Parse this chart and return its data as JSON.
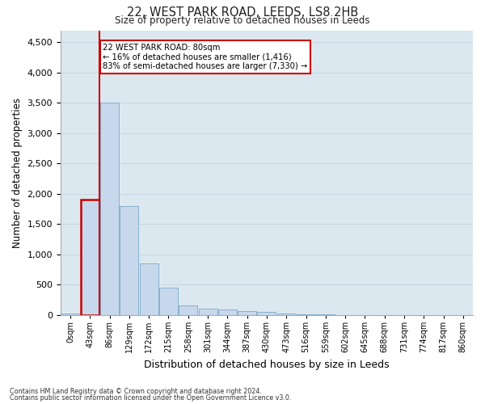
{
  "title1": "22, WEST PARK ROAD, LEEDS, LS8 2HB",
  "title2": "Size of property relative to detached houses in Leeds",
  "xlabel": "Distribution of detached houses by size in Leeds",
  "ylabel": "Number of detached properties",
  "annotation_line1": "22 WEST PARK ROAD: 80sqm",
  "annotation_line2": "← 16% of detached houses are smaller (1,416)",
  "annotation_line3": "83% of semi-detached houses are larger (7,330) →",
  "categories": [
    "0sqm",
    "43sqm",
    "86sqm",
    "129sqm",
    "172sqm",
    "215sqm",
    "258sqm",
    "301sqm",
    "344sqm",
    "387sqm",
    "430sqm",
    "473sqm",
    "516sqm",
    "559sqm",
    "602sqm",
    "645sqm",
    "688sqm",
    "731sqm",
    "774sqm",
    "817sqm",
    "860sqm"
  ],
  "values": [
    30,
    1900,
    3500,
    1800,
    850,
    450,
    160,
    100,
    85,
    70,
    55,
    30,
    10,
    6,
    3,
    2,
    1,
    1,
    1,
    1,
    1
  ],
  "bar_color": "#c8d8ec",
  "bar_edge_color": "#7aaac8",
  "highlight_bar_index": 1,
  "highlight_edge_color": "#cc0000",
  "annotation_box_color": "#ffffff",
  "annotation_box_edge_color": "#cc0000",
  "grid_color": "#c8d4e0",
  "background_color": "#dce8f0",
  "ylim": [
    0,
    4700
  ],
  "yticks": [
    0,
    500,
    1000,
    1500,
    2000,
    2500,
    3000,
    3500,
    4000,
    4500
  ],
  "red_line_x": 1.5,
  "footnote1": "Contains HM Land Registry data © Crown copyright and database right 2024.",
  "footnote2": "Contains public sector information licensed under the Open Government Licence v3.0."
}
